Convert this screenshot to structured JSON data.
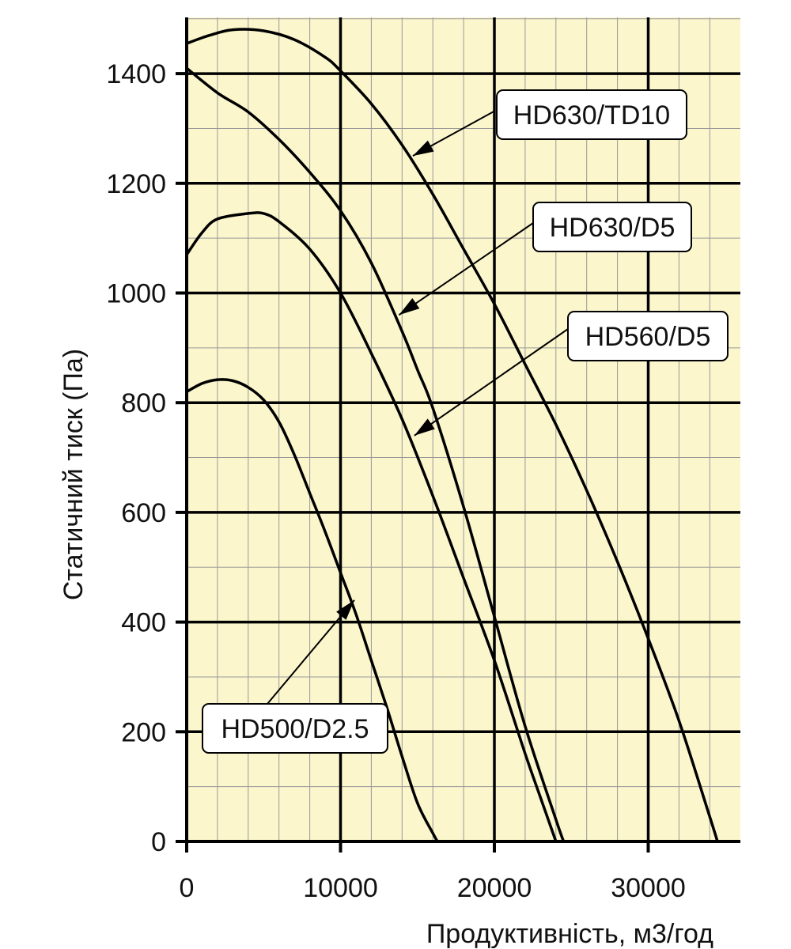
{
  "chart_data": {
    "type": "line",
    "xlabel": "Продуктивність, м3/год",
    "ylabel": "Статичний тиск (Па)",
    "xlim": [
      0,
      36000
    ],
    "ylim": [
      0,
      1500
    ],
    "x_ticks": [
      0,
      10000,
      20000,
      30000
    ],
    "y_ticks": [
      0,
      200,
      400,
      600,
      800,
      1000,
      1200,
      1400
    ],
    "x_ticks_text": [
      "0",
      "10000",
      "20000",
      "30000"
    ],
    "y_ticks_text": [
      "0",
      "200",
      "400",
      "600",
      "800",
      "1000",
      "1200",
      "1400"
    ],
    "minor_x_step": 2000,
    "minor_y_step": 100,
    "grid": true,
    "colors": {
      "background": "#fbf6cc",
      "grid_major": "#000000",
      "grid_minor": "#999999",
      "line": "#000000"
    },
    "series": [
      {
        "name": "HD630/TD10",
        "x": [
          0,
          1500,
          3000,
          5000,
          7000,
          9000,
          10000,
          12000,
          14000,
          16000,
          18000,
          20000,
          22000,
          24000,
          26000,
          28000,
          30000,
          32000,
          34000,
          34500
        ],
        "y": [
          1455,
          1470,
          1480,
          1478,
          1462,
          1430,
          1405,
          1345,
          1270,
          1180,
          1080,
          980,
          870,
          760,
          640,
          510,
          370,
          220,
          45,
          0
        ]
      },
      {
        "name": "HD630/D5",
        "x": [
          0,
          2000,
          4000,
          6000,
          8000,
          10000,
          12000,
          14000,
          15000,
          16000,
          18000,
          20000,
          22000,
          24000,
          24500
        ],
        "y": [
          1410,
          1365,
          1330,
          1280,
          1220,
          1150,
          1055,
          930,
          860,
          790,
          610,
          410,
          210,
          40,
          0
        ]
      },
      {
        "name": "HD560/D5",
        "x": [
          0,
          1000,
          2000,
          4000,
          5000,
          6000,
          8000,
          10000,
          12000,
          14000,
          16000,
          18000,
          20000,
          22000,
          23000,
          24000
        ],
        "y": [
          1070,
          1110,
          1135,
          1145,
          1145,
          1130,
          1080,
          1000,
          890,
          770,
          630,
          480,
          330,
          160,
          80,
          0
        ]
      },
      {
        "name": "HD500/D2.5",
        "x": [
          0,
          1000,
          2000,
          3000,
          4000,
          5000,
          6000,
          7000,
          8000,
          9000,
          10000,
          11000,
          12000,
          13000,
          14000,
          15000,
          16000,
          16300
        ],
        "y": [
          820,
          835,
          842,
          840,
          828,
          805,
          765,
          705,
          635,
          565,
          490,
          415,
          330,
          245,
          155,
          70,
          15,
          0
        ]
      }
    ],
    "annotations": [
      {
        "text": "HD630/TD10",
        "points_to": [
          14700,
          1250
        ]
      },
      {
        "text": "HD630/D5",
        "points_to": [
          13800,
          960
        ]
      },
      {
        "text": "HD560/D5",
        "points_to": [
          14800,
          740
        ]
      },
      {
        "text": "HD500/D2.5",
        "points_to": [
          10900,
          440
        ]
      }
    ]
  }
}
